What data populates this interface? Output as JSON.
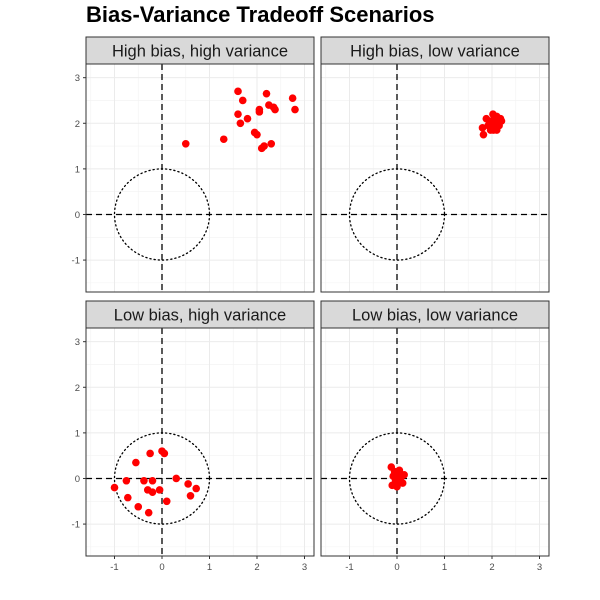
{
  "chart_data": {
    "type": "scatter",
    "title": "Bias-Variance Tradeoff Scenarios",
    "xlabel": "",
    "ylabel": "",
    "xlim": [
      -1.6,
      3.2
    ],
    "ylim": [
      -1.7,
      3.3
    ],
    "x_ticks": [
      -1,
      0,
      1,
      2,
      3
    ],
    "y_ticks": [
      -1,
      0,
      1,
      2,
      3
    ],
    "reference_lines": {
      "x": 0,
      "y": 0,
      "style": "dashed"
    },
    "target_circle": {
      "center": [
        0,
        0
      ],
      "radius": 1,
      "style": "dotted"
    },
    "grid": true,
    "point_color": "#ff0000",
    "panels": [
      {
        "name": "High bias, high variance",
        "x": [
          0.5,
          1.3,
          1.6,
          1.6,
          1.65,
          1.7,
          1.8,
          1.95,
          2.0,
          2.05,
          2.05,
          2.1,
          2.15,
          2.2,
          2.25,
          2.3,
          2.35,
          2.38,
          2.75,
          2.8
        ],
        "y": [
          1.55,
          1.65,
          2.7,
          2.2,
          2.0,
          2.5,
          2.1,
          1.8,
          1.75,
          2.25,
          2.3,
          1.45,
          1.5,
          2.65,
          2.4,
          1.55,
          2.35,
          2.3,
          2.55,
          2.3
        ]
      },
      {
        "name": "High bias, low variance",
        "x": [
          1.8,
          1.82,
          1.88,
          1.92,
          1.95,
          1.97,
          2.0,
          2.02,
          2.03,
          2.05,
          2.06,
          2.08,
          2.1,
          2.1,
          2.12,
          2.15,
          2.18,
          2.2
        ],
        "y": [
          1.9,
          1.75,
          2.1,
          1.95,
          2.05,
          1.85,
          2.0,
          2.2,
          1.85,
          2.1,
          1.95,
          2.05,
          1.85,
          2.15,
          2.0,
          1.95,
          2.1,
          2.05
        ]
      },
      {
        "name": "Low bias, high variance",
        "x": [
          -1.0,
          -0.75,
          -0.72,
          -0.55,
          -0.5,
          -0.38,
          -0.3,
          -0.28,
          -0.25,
          -0.2,
          -0.2,
          -0.05,
          0.0,
          0.05,
          0.1,
          0.3,
          0.55,
          0.6,
          0.72
        ],
        "y": [
          -0.2,
          -0.05,
          -0.42,
          0.35,
          -0.62,
          -0.05,
          -0.25,
          -0.75,
          0.55,
          -0.3,
          -0.05,
          -0.25,
          0.6,
          0.55,
          -0.5,
          0.0,
          -0.12,
          -0.38,
          -0.22
        ]
      },
      {
        "name": "Low bias, low variance",
        "x": [
          -0.12,
          -0.1,
          -0.08,
          -0.05,
          -0.03,
          0.0,
          0.0,
          0.02,
          0.05,
          0.07,
          0.1,
          0.12,
          0.15
        ],
        "y": [
          0.25,
          -0.15,
          0.05,
          0.15,
          -0.05,
          0.0,
          -0.18,
          0.1,
          0.18,
          -0.05,
          0.05,
          -0.1,
          0.08
        ]
      }
    ]
  }
}
